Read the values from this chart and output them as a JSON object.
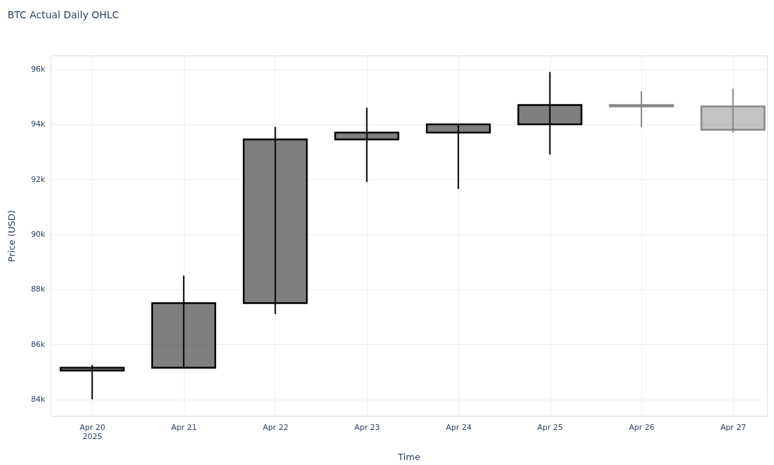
{
  "chart_data": {
    "type": "candlestick",
    "title": "BTC Actual Daily OHLC",
    "xlabel": "Time",
    "ylabel": "Price (USD)",
    "x": [
      "2025-04-20",
      "2025-04-21",
      "2025-04-22",
      "2025-04-23",
      "2025-04-24",
      "2025-04-25",
      "2025-04-26",
      "2025-04-27"
    ],
    "ohlc": [
      [
        85050,
        85250,
        84000,
        85150
      ],
      [
        85150,
        88500,
        85150,
        87500
      ],
      [
        87500,
        93900,
        87100,
        93450
      ],
      [
        93450,
        94600,
        91900,
        93700
      ],
      [
        93700,
        94000,
        91650,
        94000
      ],
      [
        94000,
        95900,
        92900,
        94700
      ],
      [
        94700,
        95200,
        93900,
        94650
      ],
      [
        94650,
        95300,
        93700,
        93800
      ]
    ],
    "colors": [
      "#000000",
      "#000000",
      "#000000",
      "#000000",
      "#000000",
      "#000000",
      "#888888",
      "#888888"
    ],
    "xlim": [
      "2025-04-19T14:00",
      "2025-04-27T08:00"
    ],
    "xticks": [
      {
        "value": "2025-04-20",
        "label": "Apr 20\n2025"
      },
      {
        "value": "2025-04-21",
        "label": "Apr 21"
      },
      {
        "value": "2025-04-22",
        "label": "Apr 22"
      },
      {
        "value": "2025-04-23",
        "label": "Apr 23"
      },
      {
        "value": "2025-04-24",
        "label": "Apr 24"
      },
      {
        "value": "2025-04-25",
        "label": "Apr 25"
      },
      {
        "value": "2025-04-26",
        "label": "Apr 26"
      },
      {
        "value": "2025-04-27",
        "label": "Apr 27"
      }
    ],
    "ylim": [
      83400,
      96500
    ],
    "yticks": [
      {
        "value": 84000,
        "label": "84k"
      },
      {
        "value": 86000,
        "label": "86k"
      },
      {
        "value": 88000,
        "label": "88k"
      },
      {
        "value": 90000,
        "label": "90k"
      },
      {
        "value": 92000,
        "label": "92k"
      },
      {
        "value": 94000,
        "label": "94k"
      },
      {
        "value": 96000,
        "label": "96k"
      }
    ],
    "grid": true
  }
}
